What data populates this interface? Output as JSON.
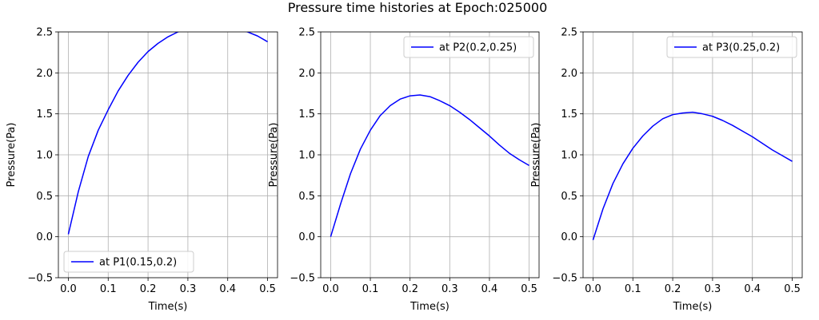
{
  "figure": {
    "title": "Pressure time histories at Epoch:025000"
  },
  "style": {
    "line_color": "#0000ff",
    "grid_color": "#b0b0b0",
    "axes_color": "#000000",
    "background": "#ffffff"
  },
  "chart_data": [
    {
      "type": "line",
      "xlabel": "Time(s)",
      "ylabel": "Pressure(Pa)",
      "xlim": [
        -0.025,
        0.525
      ],
      "ylim": [
        -0.5,
        2.5
      ],
      "xticks": [
        "0.0",
        "0.1",
        "0.2",
        "0.3",
        "0.4",
        "0.5"
      ],
      "yticks": [
        "−0.5",
        "0.0",
        "0.5",
        "1.0",
        "1.5",
        "2.0",
        "2.5"
      ],
      "grid": true,
      "legend_position": "lower-left",
      "series": [
        {
          "name": "at P1(0.15,0.2)",
          "color": "#0000ff",
          "x": [
            0.0,
            0.025,
            0.05,
            0.075,
            0.1,
            0.125,
            0.15,
            0.175,
            0.2,
            0.225,
            0.25,
            0.275,
            0.3,
            0.325,
            0.35,
            0.375,
            0.4,
            0.425,
            0.45,
            0.475,
            0.5
          ],
          "y": [
            0.03,
            0.55,
            0.98,
            1.3,
            1.55,
            1.78,
            1.97,
            2.13,
            2.26,
            2.36,
            2.44,
            2.5,
            2.54,
            2.56,
            2.57,
            2.56,
            2.55,
            2.53,
            2.5,
            2.45,
            2.38
          ]
        }
      ]
    },
    {
      "type": "line",
      "xlabel": "Time(s)",
      "ylabel": "Pressure(Pa)",
      "xlim": [
        -0.025,
        0.525
      ],
      "ylim": [
        -0.5,
        2.5
      ],
      "xticks": [
        "0.0",
        "0.1",
        "0.2",
        "0.3",
        "0.4",
        "0.5"
      ],
      "yticks": [
        "−0.5",
        "0.0",
        "0.5",
        "1.0",
        "1.5",
        "2.0",
        "2.5"
      ],
      "grid": true,
      "legend_position": "top-right",
      "series": [
        {
          "name": "at P2(0.2,0.25)",
          "color": "#0000ff",
          "x": [
            0.0,
            0.025,
            0.05,
            0.075,
            0.1,
            0.125,
            0.15,
            0.175,
            0.2,
            0.225,
            0.25,
            0.275,
            0.3,
            0.325,
            0.35,
            0.375,
            0.4,
            0.425,
            0.45,
            0.475,
            0.5
          ],
          "y": [
            0.0,
            0.4,
            0.77,
            1.07,
            1.3,
            1.48,
            1.6,
            1.68,
            1.72,
            1.73,
            1.71,
            1.66,
            1.6,
            1.52,
            1.43,
            1.33,
            1.23,
            1.12,
            1.02,
            0.94,
            0.87
          ]
        }
      ]
    },
    {
      "type": "line",
      "xlabel": "Time(s)",
      "ylabel": "Pressure(Pa)",
      "xlim": [
        -0.025,
        0.525
      ],
      "ylim": [
        -0.5,
        2.5
      ],
      "xticks": [
        "0.0",
        "0.1",
        "0.2",
        "0.3",
        "0.4",
        "0.5"
      ],
      "yticks": [
        "−0.5",
        "0.0",
        "0.5",
        "1.0",
        "1.5",
        "2.0",
        "2.5"
      ],
      "grid": true,
      "legend_position": "top-right",
      "series": [
        {
          "name": "at P3(0.25,0.2)",
          "color": "#0000ff",
          "x": [
            0.0,
            0.025,
            0.05,
            0.075,
            0.1,
            0.125,
            0.15,
            0.175,
            0.2,
            0.225,
            0.25,
            0.275,
            0.3,
            0.325,
            0.35,
            0.375,
            0.4,
            0.425,
            0.45,
            0.475,
            0.5
          ],
          "y": [
            -0.04,
            0.34,
            0.65,
            0.89,
            1.08,
            1.23,
            1.35,
            1.44,
            1.49,
            1.51,
            1.52,
            1.5,
            1.47,
            1.42,
            1.36,
            1.29,
            1.22,
            1.14,
            1.06,
            0.99,
            0.92
          ]
        }
      ]
    }
  ]
}
